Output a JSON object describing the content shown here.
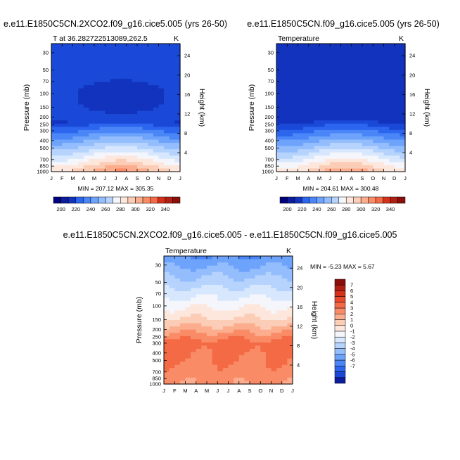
{
  "chart_data": [
    {
      "type": "heatmap",
      "title": "e.e11.E1850C5CN.2XCO2.f09_g16.cice5.005 (yrs 26-50)",
      "left_label": "T at 36.2827225130​89,262.5",
      "right_label": "K",
      "ylabel": "Pressure (mb)",
      "ylabel_right": "Height (km)",
      "x_ticks": [
        "J",
        "F",
        "M",
        "A",
        "M",
        "J",
        "J",
        "A",
        "S",
        "O",
        "N",
        "D",
        "J"
      ],
      "pressure_ticks": [
        30,
        50,
        70,
        100,
        150,
        200,
        250,
        300,
        400,
        500,
        700,
        850,
        1000
      ],
      "height_ticks": [
        4,
        8,
        12,
        16,
        20,
        24
      ],
      "stats": "MIN = 207.12 MAX = 305.35",
      "min": 207.12,
      "max": 305.35,
      "colorbar": {
        "orientation": "horizontal",
        "labels": [
          "200",
          "220",
          "240",
          "260",
          "280",
          "300",
          "320",
          "340"
        ],
        "colors": [
          "#00007e",
          "#0b1c9c",
          "#1233bd",
          "#1a49d8",
          "#2c66ee",
          "#4a86f7",
          "#6ea3fb",
          "#93bdfd",
          "#b6d3fd",
          "#d7e7fd",
          "#f5f6fb",
          "#fde7dc",
          "#fccdb6",
          "#fbad8d",
          "#f98c67",
          "#f46a45",
          "#e94a2b",
          "#d4311b",
          "#b21e12",
          "#8a0f0a"
        ],
        "vmin": 190,
        "vmax": 350
      }
    },
    {
      "type": "heatmap",
      "title": "e.e11.E1850C5CN.f09_g16.cice5.005 (yrs 26-50)",
      "left_label": "Temperature",
      "right_label": "K",
      "ylabel": "Pressure (mb)",
      "ylabel_right": "Height (km)",
      "x_ticks": [
        "J",
        "F",
        "M",
        "A",
        "M",
        "J",
        "J",
        "A",
        "S",
        "O",
        "N",
        "D",
        "J"
      ],
      "pressure_ticks": [
        30,
        50,
        70,
        100,
        150,
        200,
        250,
        300,
        400,
        500,
        700,
        850,
        1000
      ],
      "height_ticks": [
        4,
        8,
        12,
        16,
        20,
        24
      ],
      "stats": "MIN = 204.61 MAX = 300.48",
      "min": 204.61,
      "max": 300.48,
      "colorbar": {
        "orientation": "horizontal",
        "labels": [
          "200",
          "220",
          "240",
          "260",
          "280",
          "300",
          "320",
          "340"
        ],
        "colors": [
          "#00007e",
          "#0b1c9c",
          "#1233bd",
          "#1a49d8",
          "#2c66ee",
          "#4a86f7",
          "#6ea3fb",
          "#93bdfd",
          "#b6d3fd",
          "#d7e7fd",
          "#f5f6fb",
          "#fde7dc",
          "#fccdb6",
          "#fbad8d",
          "#f98c67",
          "#f46a45",
          "#e94a2b",
          "#d4311b",
          "#b21e12",
          "#8a0f0a"
        ],
        "vmin": 190,
        "vmax": 350
      }
    },
    {
      "type": "heatmap",
      "title": "e.e11.E1850C5CN.2XCO2.f09_g16.cice5.005 - e.e11.E1850C5CN.f09_g16.cice5.005",
      "left_label": "Temperature",
      "right_label": "K",
      "ylabel": "Pressure (mb)",
      "ylabel_right": "Height (km)",
      "x_ticks": [
        "J",
        "F",
        "M",
        "A",
        "M",
        "J",
        "J",
        "A",
        "S",
        "O",
        "N",
        "D",
        "J"
      ],
      "pressure_ticks": [
        30,
        50,
        70,
        100,
        150,
        200,
        250,
        300,
        400,
        500,
        700,
        850,
        1000
      ],
      "height_ticks": [
        4,
        8,
        12,
        16,
        20,
        24
      ],
      "stats": "MIN =  -5.23 MAX =   5.67",
      "min": -5.23,
      "max": 5.67,
      "colorbar": {
        "orientation": "vertical",
        "labels": [
          "7",
          "6",
          "5",
          "4",
          "3",
          "2",
          "1",
          "0",
          "-1",
          "-2",
          "-3",
          "-4",
          "-5",
          "-6",
          "-7"
        ],
        "colors": [
          "#8a0f0a",
          "#b21e12",
          "#d4311b",
          "#e94a2b",
          "#f46a45",
          "#f98c67",
          "#fbad8d",
          "#fccdb6",
          "#fde7dc",
          "#f5f6fb",
          "#d7e7fd",
          "#b6d3fd",
          "#93bdfd",
          "#6ea3fb",
          "#4a86f7",
          "#2c66ee",
          "#1a49d8",
          "#0b1c9c"
        ],
        "vmin": -8,
        "vmax": 8
      }
    }
  ]
}
